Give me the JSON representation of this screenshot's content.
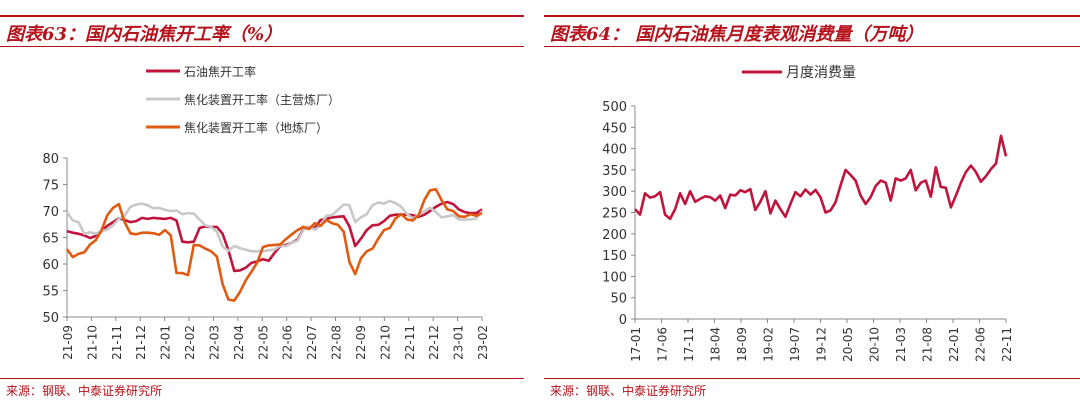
{
  "panels": [
    {
      "title": "图表63：国内石油焦开工率（%）",
      "source": "来源：钢联、中泰证券研究所"
    },
    {
      "title": "图表64： 国内石油焦月度表观消费量（万吨）",
      "source": "来源：钢联、中泰证券研究所"
    }
  ],
  "chart_data": [
    {
      "type": "line",
      "xlabel": "",
      "ylabel": "",
      "ylim": [
        50,
        80
      ],
      "yticks": [
        50,
        55,
        60,
        65,
        70,
        75,
        80
      ],
      "x_tick_labels": [
        "21-09",
        "21-10",
        "21-11",
        "21-12",
        "22-01",
        "22-02",
        "22-03",
        "22-04",
        "22-05",
        "22-06",
        "22-07",
        "22-08",
        "22-09",
        "22-10",
        "22-11",
        "22-12",
        "23-01",
        "23-02"
      ],
      "grid": false,
      "legend_position": "top-left",
      "series": [
        {
          "name": "石油焦开工率",
          "color": "#c0143c",
          "values": [
            66.2,
            65.9,
            65.7,
            65.4,
            64.9,
            65.3,
            66.2,
            67.2,
            67.9,
            68.6,
            68.3,
            67.9,
            68.1,
            68.7,
            68.5,
            68.7,
            68.6,
            68.5,
            68.7,
            68.2,
            64.2,
            64.1,
            64.2,
            66.8,
            67.1,
            67.0,
            67.0,
            65.7,
            62.6,
            58.7,
            58.8,
            59.3,
            60.2,
            60.5,
            60.9,
            60.6,
            62.1,
            63.4,
            63.6,
            64.0,
            64.6,
            66.6,
            67.0,
            66.8,
            68.3,
            68.5,
            68.8,
            68.9,
            69.0,
            67.1,
            63.4,
            64.8,
            66.4,
            67.3,
            67.4,
            68.1,
            69.1,
            69.3,
            69.3,
            69.3,
            69.2,
            68.9,
            69.3,
            70.0,
            70.8,
            71.4,
            71.7,
            71.3,
            70.3,
            69.8,
            69.6,
            69.6,
            70.3
          ]
        },
        {
          "name": "焦化装置开工率（主营炼厂）",
          "color": "#c8c8c8",
          "values": [
            69.8,
            68.2,
            67.9,
            65.7,
            66.0,
            65.7,
            66.2,
            66.5,
            67.3,
            68.5,
            69.1,
            70.8,
            71.2,
            71.4,
            71.1,
            70.5,
            70.6,
            70.2,
            70.0,
            70.1,
            69.4,
            69.6,
            69.5,
            68.4,
            67.3,
            67.0,
            66.1,
            63.3,
            62.5,
            63.4,
            63.0,
            62.7,
            62.4,
            62.4,
            62.4,
            62.6,
            62.7,
            63.5,
            63.4,
            64.0,
            64.4,
            66.4,
            67.0,
            66.5,
            67.2,
            69.1,
            69.2,
            70.2,
            71.2,
            71.1,
            67.9,
            68.8,
            69.4,
            71.1,
            71.6,
            71.4,
            71.9,
            71.5,
            70.8,
            69.4,
            68.6,
            69.2,
            70.0,
            70.6,
            69.8,
            68.8,
            69.0,
            69.2,
            68.4,
            68.4,
            68.4,
            68.6,
            70.0
          ]
        },
        {
          "name": "焦化装置开工率（地炼厂）",
          "color": "#e05a10",
          "values": [
            62.8,
            61.3,
            61.9,
            62.2,
            63.7,
            64.5,
            66.4,
            69.2,
            70.6,
            71.3,
            67.9,
            65.8,
            65.6,
            65.9,
            65.9,
            65.8,
            65.5,
            66.4,
            65.4,
            58.3,
            58.3,
            57.9,
            63.6,
            63.5,
            62.9,
            62.4,
            61.4,
            56.2,
            53.3,
            53.1,
            54.7,
            56.9,
            58.5,
            60.3,
            63.2,
            63.5,
            63.6,
            63.7,
            64.7,
            65.6,
            66.4,
            67.0,
            66.6,
            67.7,
            67.2,
            68.3,
            67.7,
            67.4,
            66.1,
            60.4,
            58.1,
            61.1,
            62.4,
            62.9,
            64.8,
            66.4,
            66.8,
            68.6,
            69.4,
            68.4,
            68.2,
            69.2,
            72.1,
            73.9,
            74.1,
            72.0,
            70.3,
            70.0,
            69.0,
            68.9,
            69.4,
            69.1,
            69.6
          ]
        }
      ]
    },
    {
      "type": "line",
      "xlabel": "",
      "ylabel": "",
      "ylim": [
        0,
        500
      ],
      "yticks": [
        0,
        50,
        100,
        150,
        200,
        250,
        300,
        350,
        400,
        450,
        500
      ],
      "x_tick_labels": [
        "17-01",
        "17-06",
        "17-11",
        "18-04",
        "18-09",
        "19-02",
        "19-07",
        "19-12",
        "20-05",
        "20-10",
        "21-03",
        "21-08",
        "22-01",
        "22-06",
        "22-11"
      ],
      "grid": false,
      "legend_position": "top-center",
      "series": [
        {
          "name": "月度消费量",
          "color": "#c0143c",
          "values": [
            258,
            245,
            295,
            285,
            288,
            298,
            245,
            235,
            258,
            295,
            270,
            300,
            275,
            282,
            288,
            286,
            278,
            290,
            260,
            292,
            290,
            302,
            298,
            305,
            256,
            275,
            300,
            248,
            278,
            258,
            240,
            270,
            298,
            288,
            304,
            292,
            303,
            286,
            250,
            255,
            274,
            314,
            350,
            338,
            325,
            290,
            270,
            286,
            312,
            325,
            320,
            278,
            330,
            325,
            330,
            350,
            302,
            320,
            325,
            287,
            356,
            310,
            308,
            262,
            290,
            320,
            345,
            360,
            345,
            322,
            335,
            352,
            365,
            430,
            382
          ]
        }
      ]
    }
  ]
}
